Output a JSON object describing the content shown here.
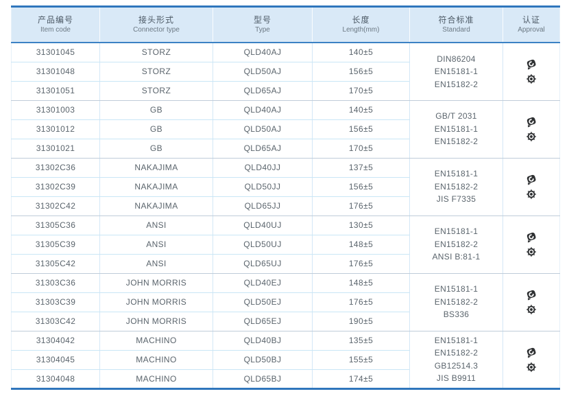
{
  "colors": {
    "accent_blue": "#2f76bc",
    "header_background": "#d9e9f7",
    "row_separator": "#c9e6f6",
    "group_separator": "#bfccd9",
    "body_text": "#5a646c",
    "icon_color": "#2f3133"
  },
  "table": {
    "columns": [
      {
        "zh": "产品编号",
        "en": "Item code"
      },
      {
        "zh": "接头形式",
        "en": "Connector type"
      },
      {
        "zh": "型号",
        "en": "Type"
      },
      {
        "zh": "长度",
        "en": "Length(mm)"
      },
      {
        "zh": "符合标准",
        "en": "Standard"
      },
      {
        "zh": "认证",
        "en": "Approval"
      }
    ],
    "groups": [
      {
        "rows": [
          {
            "item_code": "31301045",
            "connector_type": "STORZ",
            "type": "QLD40AJ",
            "length": "140±5"
          },
          {
            "item_code": "31301048",
            "connector_type": "STORZ",
            "type": "QLD50AJ",
            "length": "156±5"
          },
          {
            "item_code": "31301051",
            "connector_type": "STORZ",
            "type": "QLD65AJ",
            "length": "170±5"
          }
        ],
        "standards": [
          "DIN86204",
          "EN15181-1",
          "EN15182-2"
        ],
        "approval_icons": [
          "certificate-stamp-icon",
          "gear-seal-icon"
        ]
      },
      {
        "rows": [
          {
            "item_code": "31301003",
            "connector_type": "GB",
            "type": "QLD40AJ",
            "length": "140±5"
          },
          {
            "item_code": "31301012",
            "connector_type": "GB",
            "type": "QLD50AJ",
            "length": "156±5"
          },
          {
            "item_code": "31301021",
            "connector_type": "GB",
            "type": "QLD65AJ",
            "length": "170±5"
          }
        ],
        "standards": [
          "GB/T 2031",
          "EN15181-1",
          "EN15182-2"
        ],
        "approval_icons": [
          "certificate-stamp-icon",
          "gear-seal-icon"
        ]
      },
      {
        "rows": [
          {
            "item_code": "31302C36",
            "connector_type": "NAKAJIMA",
            "type": "QLD40JJ",
            "length": "137±5"
          },
          {
            "item_code": "31302C39",
            "connector_type": "NAKAJIMA",
            "type": "QLD50JJ",
            "length": "156±5"
          },
          {
            "item_code": "31302C42",
            "connector_type": "NAKAJIMA",
            "type": "QLD65JJ",
            "length": "176±5"
          }
        ],
        "standards": [
          "EN15181-1",
          "EN15182-2",
          "JIS F7335"
        ],
        "approval_icons": [
          "certificate-stamp-icon",
          "gear-seal-icon"
        ]
      },
      {
        "rows": [
          {
            "item_code": "31305C36",
            "connector_type": "ANSI",
            "type": "QLD40UJ",
            "length": "130±5"
          },
          {
            "item_code": "31305C39",
            "connector_type": "ANSI",
            "type": "QLD50UJ",
            "length": "148±5"
          },
          {
            "item_code": "31305C42",
            "connector_type": "ANSI",
            "type": "QLD65UJ",
            "length": "176±5"
          }
        ],
        "standards": [
          "EN15181-1",
          "EN15182-2",
          "ANSI B:81-1"
        ],
        "approval_icons": [
          "certificate-stamp-icon",
          "gear-seal-icon"
        ]
      },
      {
        "rows": [
          {
            "item_code": "31303C36",
            "connector_type": "JOHN MORRIS",
            "type": "QLD40EJ",
            "length": "148±5"
          },
          {
            "item_code": "31303C39",
            "connector_type": "JOHN MORRIS",
            "type": "QLD50EJ",
            "length": "176±5"
          },
          {
            "item_code": "31303C42",
            "connector_type": "JOHN MORRIS",
            "type": "QLD65EJ",
            "length": "190±5"
          }
        ],
        "standards": [
          "EN15181-1",
          "EN15182-2",
          "BS336"
        ],
        "approval_icons": [
          "certificate-stamp-icon",
          "gear-seal-icon"
        ]
      },
      {
        "rows": [
          {
            "item_code": "31304042",
            "connector_type": "MACHINO",
            "type": "QLD40BJ",
            "length": "135±5"
          },
          {
            "item_code": "31304045",
            "connector_type": "MACHINO",
            "type": "QLD50BJ",
            "length": "155±5"
          },
          {
            "item_code": "31304048",
            "connector_type": "MACHINO",
            "type": "QLD65BJ",
            "length": "174±5"
          }
        ],
        "standards": [
          "EN15181-1",
          "EN15182-2",
          "GB12514.3",
          "JIS B9911"
        ],
        "approval_icons": [
          "certificate-stamp-icon",
          "gear-seal-icon"
        ]
      }
    ]
  }
}
